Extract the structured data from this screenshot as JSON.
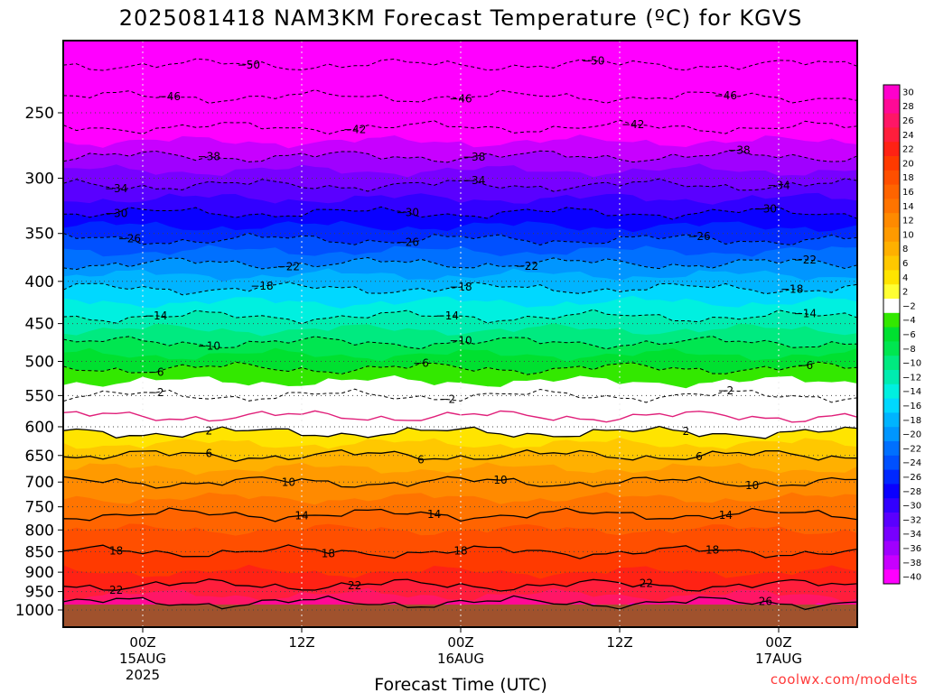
{
  "chart_data": {
    "type": "heatmap",
    "title": "2025081418 NAM3KM Forecast Temperature (ºC) for KGVS",
    "xlabel": "Forecast Time (UTC)",
    "ylabel": "",
    "y_axis": {
      "unit": "hPa",
      "scale": "log-pressure",
      "range": [
        1000,
        200
      ],
      "ticks": [
        250,
        300,
        350,
        400,
        450,
        500,
        550,
        600,
        650,
        700,
        750,
        800,
        850,
        900,
        950,
        1000
      ]
    },
    "x_axis": {
      "range_hours": [
        -6,
        54
      ],
      "ticks": [
        {
          "hour": 0,
          "label": "00Z",
          "sub1": "15AUG",
          "sub2": "2025"
        },
        {
          "hour": 12,
          "label": "12Z",
          "sub1": "",
          "sub2": ""
        },
        {
          "hour": 24,
          "label": "00Z",
          "sub1": "16AUG",
          "sub2": ""
        },
        {
          "hour": 36,
          "label": "12Z",
          "sub1": "",
          "sub2": ""
        },
        {
          "hour": 48,
          "label": "00Z",
          "sub1": "17AUG",
          "sub2": ""
        }
      ]
    },
    "colorbar": {
      "levels": [
        30,
        28,
        26,
        24,
        22,
        20,
        18,
        16,
        14,
        12,
        10,
        8,
        6,
        4,
        2,
        -2,
        -4,
        -6,
        -8,
        -10,
        -12,
        -14,
        -16,
        -18,
        -20,
        -22,
        -24,
        -26,
        -28,
        -30,
        -32,
        -34,
        -36,
        -38,
        -40
      ],
      "labels": [
        "30",
        "28",
        "26",
        "24",
        "22",
        "20",
        "18",
        "16",
        "14",
        "12",
        "10",
        "8",
        "6",
        "4",
        "2",
        "−2",
        "−4",
        "−6",
        "−8",
        "−10",
        "−12",
        "−14",
        "−16",
        "−18",
        "−20",
        "−22",
        "−24",
        "−26",
        "−28",
        "−30",
        "−32",
        "−34",
        "−36",
        "−38",
        "−40"
      ],
      "colors": [
        "#ff00cc",
        "#ff0a96",
        "#ff1666",
        "#ff1e3c",
        "#ff2214",
        "#ff3a00",
        "#ff4f00",
        "#ff6400",
        "#ff7400",
        "#ff8a00",
        "#ff9a00",
        "#ffb000",
        "#ffc800",
        "#ffe400",
        "#ffff33",
        "#ffffff",
        "#33e800",
        "#00e030",
        "#00e650",
        "#00ea80",
        "#00ecb0",
        "#00f0e0",
        "#00d8ff",
        "#00b4ff",
        "#0096ff",
        "#0070ff",
        "#0050ff",
        "#0028ff",
        "#0a00ff",
        "#3200ff",
        "#5a00ff",
        "#7800ff",
        "#a000ff",
        "#c800ff",
        "#ff00ff"
      ]
    },
    "ground_color": "#a0522d",
    "freezing_line_color": "#e0207a",
    "isotherm_profile": {
      "description_units": "temperature (ºC) vs pressure (hPa) at forecast start",
      "pressure": [
        200,
        250,
        300,
        350,
        400,
        450,
        500,
        550,
        600,
        650,
        700,
        750,
        800,
        850,
        900,
        950,
        1000
      ],
      "temperature": [
        -54,
        -44,
        -35,
        -27,
        -19,
        -13,
        -7,
        -2,
        1,
        6,
        10,
        13,
        16,
        18,
        20,
        23,
        28
      ]
    },
    "contours": [
      {
        "value": -50,
        "style": "dashed",
        "labels": [
          {
            "hour": 8,
            "p": 215
          },
          {
            "hour": 34,
            "p": 218
          }
        ]
      },
      {
        "value": -46,
        "style": "dashed",
        "labels": [
          {
            "hour": 2,
            "p": 237
          },
          {
            "hour": 24,
            "p": 234
          },
          {
            "hour": 44,
            "p": 233
          }
        ]
      },
      {
        "value": -42,
        "style": "dashed",
        "labels": [
          {
            "hour": 16,
            "p": 260
          },
          {
            "hour": 37,
            "p": 255
          }
        ]
      },
      {
        "value": -38,
        "style": "dashed",
        "labels": [
          {
            "hour": 5,
            "p": 285
          },
          {
            "hour": 25,
            "p": 276
          },
          {
            "hour": 45,
            "p": 274
          }
        ]
      },
      {
        "value": -34,
        "style": "dashed",
        "labels": [
          {
            "hour": -2,
            "p": 307
          },
          {
            "hour": 25,
            "p": 293
          },
          {
            "hour": 48,
            "p": 290
          }
        ]
      },
      {
        "value": -30,
        "style": "dashed",
        "labels": [
          {
            "hour": -2,
            "p": 329
          },
          {
            "hour": 20,
            "p": 320
          },
          {
            "hour": 47,
            "p": 308
          }
        ]
      },
      {
        "value": -26,
        "style": "dashed",
        "labels": [
          {
            "hour": -1,
            "p": 355
          },
          {
            "hour": 20,
            "p": 349
          },
          {
            "hour": 42,
            "p": 334
          }
        ]
      },
      {
        "value": -22,
        "style": "dashed",
        "labels": [
          {
            "hour": 11,
            "p": 385
          },
          {
            "hour": 29,
            "p": 370
          },
          {
            "hour": 50,
            "p": 375
          }
        ]
      },
      {
        "value": -18,
        "style": "dashed",
        "labels": [
          {
            "hour": 9,
            "p": 412
          },
          {
            "hour": 24,
            "p": 398
          },
          {
            "hour": 49,
            "p": 405
          }
        ]
      },
      {
        "value": -14,
        "style": "dashed",
        "labels": [
          {
            "hour": 1,
            "p": 440
          },
          {
            "hour": 23,
            "p": 442
          },
          {
            "hour": 50,
            "p": 437
          }
        ]
      },
      {
        "value": -10,
        "style": "dashed",
        "labels": [
          {
            "hour": 5,
            "p": 484
          },
          {
            "hour": 24,
            "p": 491
          }
        ]
      },
      {
        "value": -6,
        "style": "dashed",
        "labels": [
          {
            "hour": 1,
            "p": 528
          },
          {
            "hour": 21,
            "p": 528
          },
          {
            "hour": 50,
            "p": 508
          }
        ]
      },
      {
        "value": -2,
        "style": "dashed",
        "labels": [
          {
            "hour": 1,
            "p": 574
          },
          {
            "hour": 23,
            "p": 578
          },
          {
            "hour": 44,
            "p": 584
          }
        ]
      },
      {
        "value": 2,
        "style": "solid",
        "labels": [
          {
            "hour": 5,
            "p": 605
          },
          {
            "hour": 41,
            "p": 613
          }
        ]
      },
      {
        "value": 6,
        "style": "solid",
        "labels": [
          {
            "hour": 5,
            "p": 660
          },
          {
            "hour": 21,
            "p": 667
          },
          {
            "hour": 42,
            "p": 655
          }
        ]
      },
      {
        "value": 10,
        "style": "solid",
        "labels": [
          {
            "hour": 11,
            "p": 718
          },
          {
            "hour": 27,
            "p": 718
          },
          {
            "hour": 46,
            "p": 702
          }
        ]
      },
      {
        "value": 14,
        "style": "solid",
        "labels": [
          {
            "hour": 12,
            "p": 850
          },
          {
            "hour": 22,
            "p": 767
          },
          {
            "hour": 44,
            "p": 757
          }
        ]
      },
      {
        "value": 18,
        "style": "solid",
        "labels": [
          {
            "hour": -2,
            "p": 905
          },
          {
            "hour": 14,
            "p": 915
          },
          {
            "hour": 24,
            "p": 815
          },
          {
            "hour": 43,
            "p": 825
          }
        ]
      },
      {
        "value": 22,
        "style": "solid",
        "labels": [
          {
            "hour": -2,
            "p": 950
          },
          {
            "hour": 16,
            "p": 970
          },
          {
            "hour": 38,
            "p": 955
          }
        ]
      },
      {
        "value": 26,
        "style": "solid",
        "labels": [
          {
            "hour": 47,
            "p": 963
          }
        ]
      }
    ]
  },
  "credit": "coolwx.com/modelts"
}
